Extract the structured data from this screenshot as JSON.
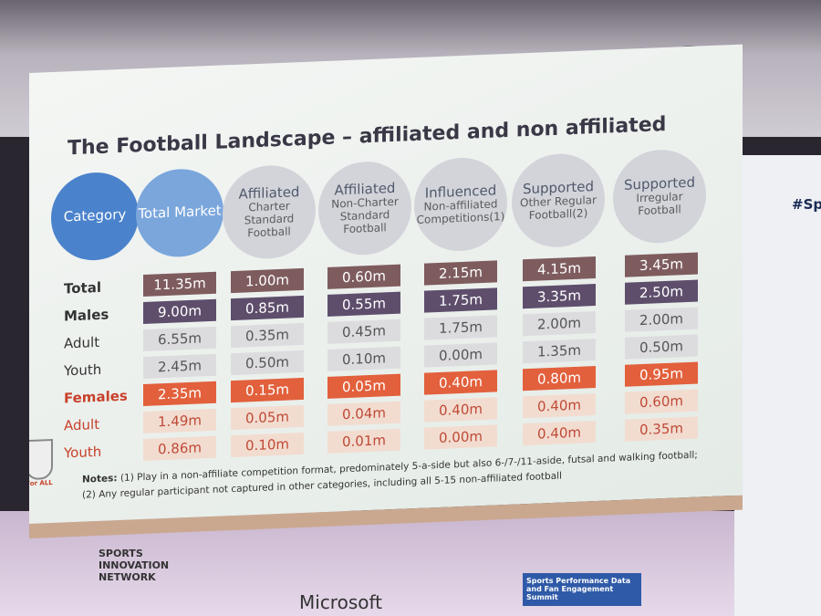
{
  "slide": {
    "title": "The Football Landscape – affiliated and non affiliated",
    "columns": [
      {
        "head": "Category",
        "sub": ""
      },
      {
        "head": "Total Market",
        "sub": ""
      },
      {
        "head": "Affiliated",
        "sub": "Charter Standard Football"
      },
      {
        "head": "Affiliated",
        "sub": "Non-Charter Standard Football"
      },
      {
        "head": "Influenced",
        "sub": "Non-affiliated Competitions(1)"
      },
      {
        "head": "Supported",
        "sub": "Other Regular Football(2)"
      },
      {
        "head": "Supported",
        "sub": "Irregular Football"
      }
    ],
    "rows": [
      {
        "label": "Total",
        "values": [
          "11.35m",
          "1.00m",
          "0.60m",
          "2.15m",
          "4.15m",
          "3.45m"
        ]
      },
      {
        "label": "Males",
        "values": [
          "9.00m",
          "0.85m",
          "0.55m",
          "1.75m",
          "3.35m",
          "2.50m"
        ]
      },
      {
        "label": "Adult",
        "values": [
          "6.55m",
          "0.35m",
          "0.45m",
          "1.75m",
          "2.00m",
          "2.00m"
        ]
      },
      {
        "label": "Youth",
        "values": [
          "2.45m",
          "0.50m",
          "0.10m",
          "0.00m",
          "1.35m",
          "0.50m"
        ]
      },
      {
        "label": "Females",
        "values": [
          "2.35m",
          "0.15m",
          "0.05m",
          "0.40m",
          "0.80m",
          "0.95m"
        ]
      },
      {
        "label": "Adult",
        "values": [
          "1.49m",
          "0.05m",
          "0.04m",
          "0.40m",
          "0.40m",
          "0.60m"
        ]
      },
      {
        "label": "Youth",
        "values": [
          "0.86m",
          "0.10m",
          "0.01m",
          "0.00m",
          "0.40m",
          "0.35m"
        ]
      }
    ],
    "notes_label": "Notes:",
    "note1": "(1) Play in a non-affiliate competition format, predominately 5-a-side but also 6-/7-/11-aside, futsal and walking football;",
    "note2": "(2) Any regular participant not captured in other categories, including all 5-15 non-affiliated football",
    "logo": "The FA For ALL"
  },
  "venue": {
    "hashtag": "#Spo",
    "sponsor1": "SPORTS INNOVATION NETWORK",
    "sponsor2": "Microsoft",
    "sponsor3": "Sports Performance Data and Fan Engagement Summit"
  }
}
